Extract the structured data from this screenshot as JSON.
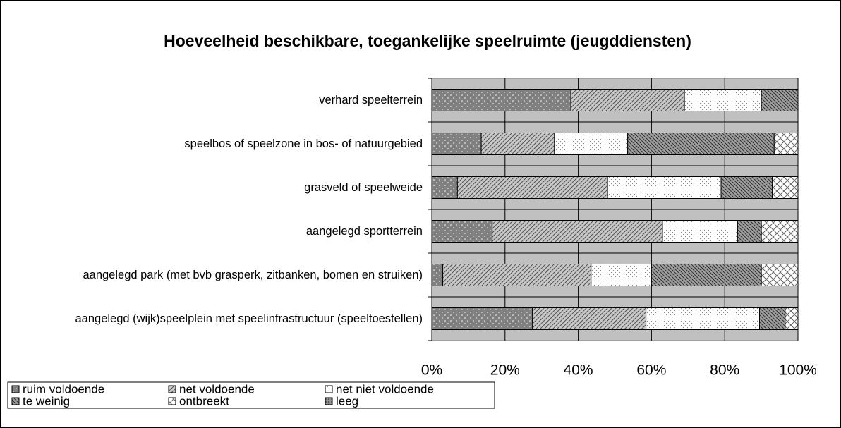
{
  "chart_data": {
    "type": "stacked-bar-horizontal",
    "title": "Hoeveelheid beschikbare, toegankelijke speelruimte (jeugddiensten)",
    "categories": [
      "verhard speelterrein",
      "speelbos of speelzone in bos- of natuurgebied",
      "grasveld of speelweide",
      "aangelegd sportterrein",
      "aangelegd park (met bvb grasperk, zitbanken, bomen en struiken)",
      "aangelegd (wijk)speelplein met speelinfrastructuur (speeltoestellen)"
    ],
    "series": [
      {
        "name": "ruim voldoende",
        "color": "#808080",
        "values": [
          38,
          13.5,
          7,
          16.5,
          3,
          27.5
        ]
      },
      {
        "name": "net voldoende",
        "color": "#c8c8c8",
        "values": [
          31,
          20,
          41,
          46.5,
          40.5,
          31
        ]
      },
      {
        "name": "net niet voldoende",
        "color": "#ffffff",
        "values": [
          21,
          20,
          31,
          20.5,
          16.5,
          31
        ]
      },
      {
        "name": "te weinig",
        "color": "#a0a0a0",
        "values": [
          10,
          40,
          14,
          6.5,
          30,
          7
        ]
      },
      {
        "name": "ontbreekt",
        "color": "#ffffff",
        "values": [
          0,
          6.5,
          7,
          10,
          10,
          3.5
        ]
      },
      {
        "name": "leeg",
        "color": "#909090",
        "values": [
          0,
          0,
          0,
          0,
          0,
          0
        ]
      }
    ],
    "xlim": [
      0,
      100
    ],
    "xticks": [
      {
        "value": 0,
        "label": "0%"
      },
      {
        "value": 20,
        "label": "20%"
      },
      {
        "value": 40,
        "label": "40%"
      },
      {
        "value": 60,
        "label": "60%"
      },
      {
        "value": 80,
        "label": "80%"
      },
      {
        "value": 100,
        "label": "100%"
      }
    ],
    "grid": true
  }
}
